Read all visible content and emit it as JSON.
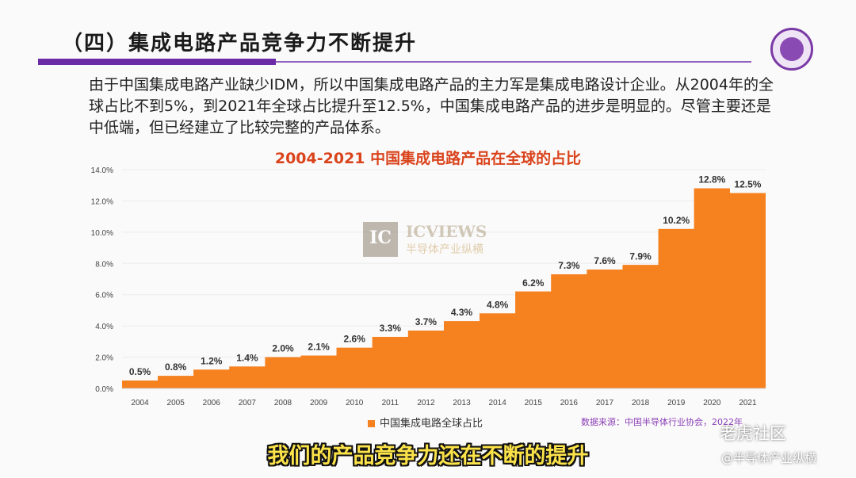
{
  "header": {
    "title": "（四）集成电路产品竞争力不断提升"
  },
  "intro": {
    "text": "由于中国集成电路产业缺少IDM，所以中国集成电路产品的主力军是集成电路设计企业。从2004年的全球占比不到5%，到2021年全球占比提升至12.5%，中国集成电路产品的进步是明显的。尽管主要还是中低端，但已经建立了比较完整的产品体系。"
  },
  "chart_data": {
    "type": "area",
    "title": "2004-2021 中国集成电路产品在全球的占比",
    "categories": [
      "2004",
      "2005",
      "2006",
      "2007",
      "2008",
      "2009",
      "2010",
      "2011",
      "2012",
      "2013",
      "2014",
      "2015",
      "2016",
      "2017",
      "2018",
      "2019",
      "2020",
      "2021"
    ],
    "series": [
      {
        "name": "中国集成电路全球占比",
        "values": [
          0.5,
          0.8,
          1.2,
          1.4,
          2.0,
          2.1,
          2.6,
          3.3,
          3.7,
          4.3,
          4.8,
          6.2,
          7.3,
          7.6,
          7.9,
          10.2,
          12.8,
          12.5
        ]
      }
    ],
    "data_labels": [
      "0.5%",
      "0.8%",
      "1.2%",
      "1.4%",
      "2.0%",
      "2.1%",
      "2.6%",
      "3.3%",
      "3.7%",
      "4.3%",
      "4.8%",
      "6.2%",
      "7.3%",
      "7.6%",
      "7.9%",
      "10.2%",
      "12.8%",
      "12.5%"
    ],
    "y_ticks": [
      "0.0%",
      "2.0%",
      "4.0%",
      "6.0%",
      "8.0%",
      "10.0%",
      "12.0%",
      "14.0%"
    ],
    "ylim": [
      0,
      14
    ],
    "color": "#f5811f",
    "legend_position": "bottom"
  },
  "source": {
    "text": "数据来源：中国半导体行业协会，2022年"
  },
  "watermark": {
    "mark": "IC",
    "name": "ICVIEWS",
    "sub": "半导体产业纵横"
  },
  "caption": {
    "text": "我们的产品竞争力还在不断的提升"
  },
  "corner": {
    "line1": "老虎社区",
    "line2": "@半导体产业纵横"
  }
}
